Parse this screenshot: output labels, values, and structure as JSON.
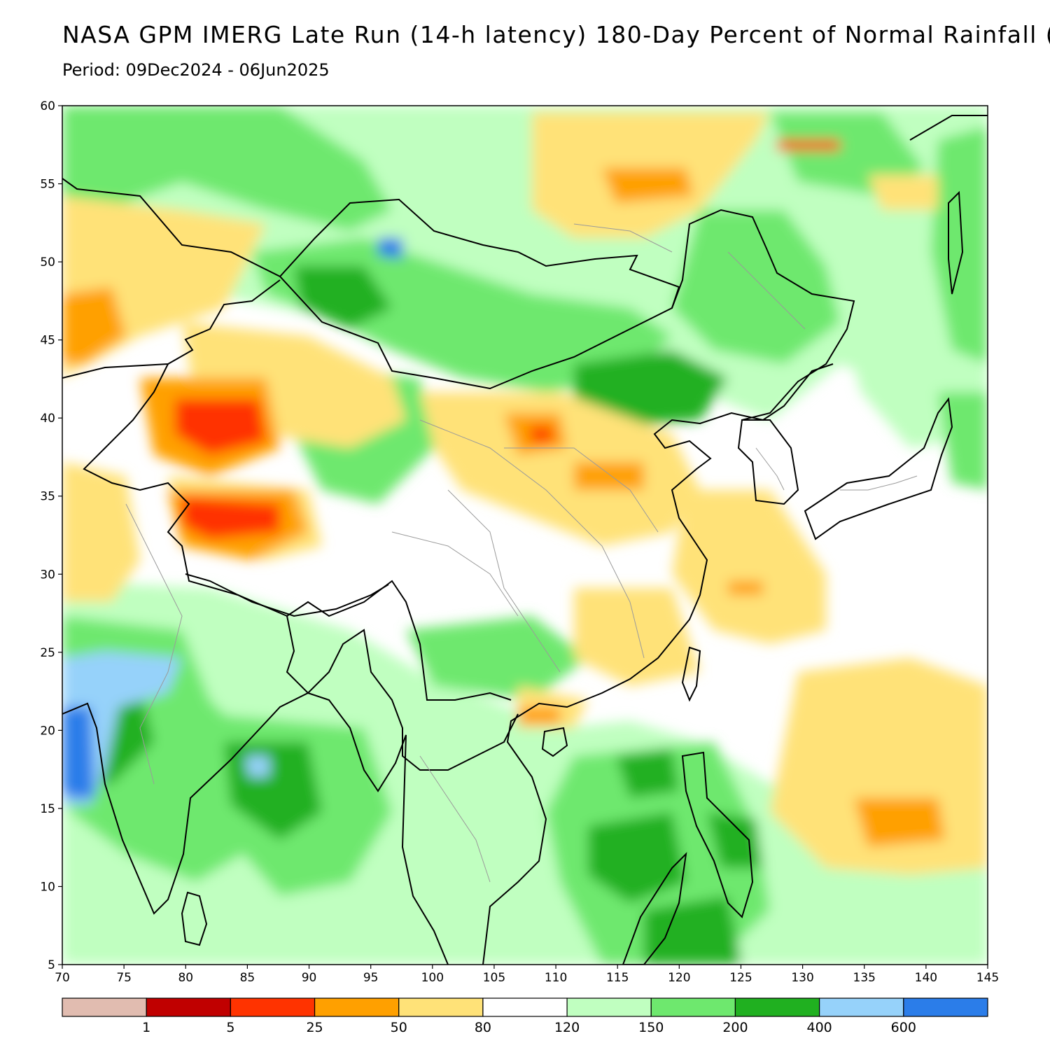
{
  "header": {
    "title": "NASA GPM IMERG Late Run (14-h latency) 180-Day Percent of Normal Rainfall (",
    "period": "Period: 09Dec2024 - 06Jun2025"
  },
  "map": {
    "lon_range": [
      70,
      145
    ],
    "lat_range": [
      5,
      60
    ],
    "lon_ticks": [
      70,
      75,
      80,
      85,
      90,
      95,
      100,
      105,
      110,
      115,
      120,
      125,
      130,
      135,
      140,
      145
    ],
    "lat_ticks": [
      5,
      10,
      15,
      20,
      25,
      30,
      35,
      40,
      45,
      50,
      55,
      60
    ]
  },
  "colorbar": {
    "colors": [
      "#e1bcb0",
      "#c00000",
      "#ff3300",
      "#ffa000",
      "#ffe278",
      "#ffffff",
      "#c0ffc0",
      "#6ee86e",
      "#20b020",
      "#96d2fa",
      "#2b7de9"
    ],
    "labels": [
      "1",
      "5",
      "25",
      "50",
      "80",
      "120",
      "150",
      "200",
      "400",
      "600"
    ]
  },
  "palette": {
    "dry_extreme": "#c00000",
    "dry_strong": "#ff3300",
    "dry": "#ffa000",
    "dry_light": "#ffe278",
    "normal": "#ffffff",
    "wet_light": "#c0ffc0",
    "wet": "#6ee86e",
    "wet_strong": "#20b020",
    "wet_very": "#96d2fa",
    "wet_extreme": "#2b7de9"
  }
}
